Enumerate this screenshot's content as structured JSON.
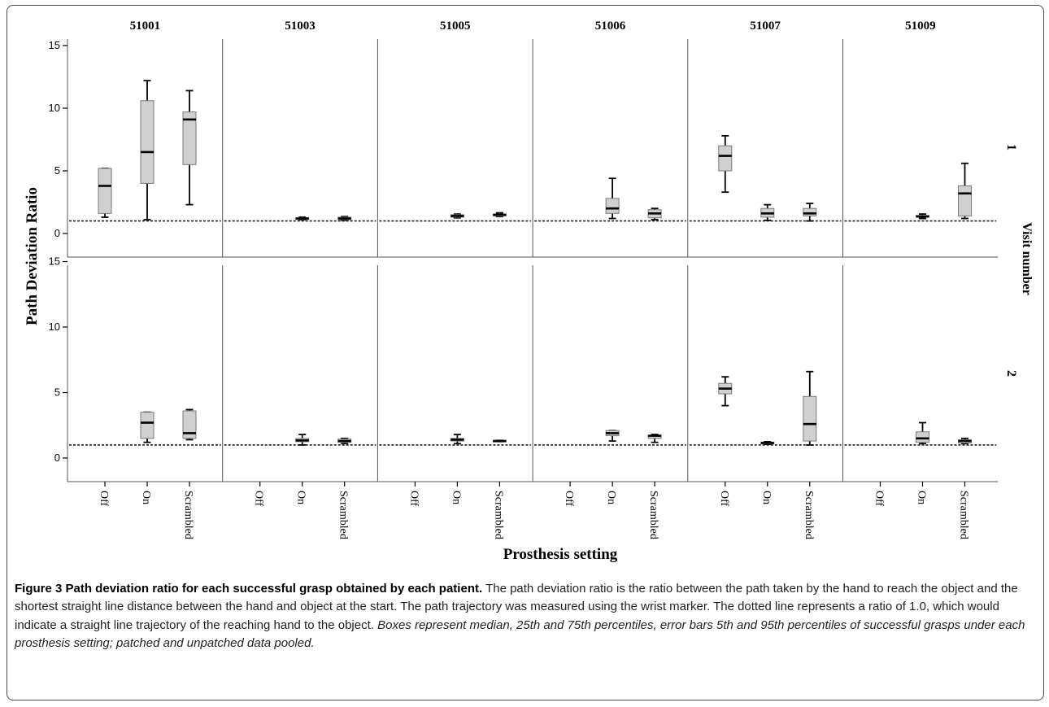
{
  "chart_data": {
    "type": "box",
    "facet_columns": [
      "51001",
      "51003",
      "51005",
      "51006",
      "51007",
      "51009"
    ],
    "facet_rows": [
      "1",
      "2"
    ],
    "categories": [
      "Off",
      "On",
      "Scrambled"
    ],
    "ylabel": "Path Deviation Ratio",
    "xlabel": "Prosthesis setting",
    "row_axis_label": "Visit number",
    "yticks": [
      0,
      5,
      10,
      15
    ],
    "ylim": [
      -0.8,
      16.2
    ],
    "reference_line": 1.0,
    "box_fields": [
      "min",
      "q1",
      "median",
      "q3",
      "max"
    ],
    "panels": [
      {
        "column": "51001",
        "row": "1",
        "boxes": {
          "Off": [
            1.3,
            1.6,
            3.8,
            5.2,
            5.2
          ],
          "On": [
            1.1,
            4.0,
            6.5,
            10.6,
            12.2
          ],
          "Scrambled": [
            2.3,
            5.5,
            9.1,
            9.7,
            11.4
          ]
        }
      },
      {
        "column": "51003",
        "row": "1",
        "boxes": {
          "On": [
            1.1,
            1.15,
            1.2,
            1.25,
            1.3
          ],
          "Scrambled": [
            1.05,
            1.1,
            1.2,
            1.3,
            1.35
          ]
        }
      },
      {
        "column": "51005",
        "row": "1",
        "boxes": {
          "On": [
            1.25,
            1.3,
            1.4,
            1.5,
            1.55
          ],
          "Scrambled": [
            1.35,
            1.4,
            1.5,
            1.55,
            1.65
          ]
        }
      },
      {
        "column": "51006",
        "row": "1",
        "boxes": {
          "On": [
            1.2,
            1.6,
            2.0,
            2.8,
            4.4
          ],
          "Scrambled": [
            1.1,
            1.25,
            1.6,
            1.9,
            2.0
          ]
        }
      },
      {
        "column": "51007",
        "row": "1",
        "boxes": {
          "Off": [
            3.3,
            5.0,
            6.2,
            7.0,
            7.8
          ],
          "On": [
            1.05,
            1.3,
            1.6,
            2.0,
            2.3
          ],
          "Scrambled": [
            1.0,
            1.4,
            1.6,
            2.0,
            2.4
          ]
        }
      },
      {
        "column": "51009",
        "row": "1",
        "boxes": {
          "On": [
            1.2,
            1.3,
            1.35,
            1.45,
            1.55
          ],
          "Scrambled": [
            1.2,
            1.4,
            3.2,
            3.8,
            5.6
          ]
        }
      },
      {
        "column": "51001",
        "row": "2",
        "boxes": {
          "On": [
            1.2,
            1.5,
            2.7,
            3.5,
            3.5
          ],
          "Scrambled": [
            1.4,
            1.5,
            1.9,
            3.6,
            3.7
          ]
        }
      },
      {
        "column": "51003",
        "row": "2",
        "boxes": {
          "On": [
            1.0,
            1.25,
            1.35,
            1.5,
            1.8
          ],
          "Scrambled": [
            1.1,
            1.2,
            1.3,
            1.45,
            1.5
          ]
        }
      },
      {
        "column": "51005",
        "row": "2",
        "boxes": {
          "On": [
            1.1,
            1.3,
            1.4,
            1.5,
            1.8
          ],
          "Scrambled": [
            1.3,
            1.3,
            1.3,
            1.35,
            1.35
          ]
        }
      },
      {
        "column": "51006",
        "row": "2",
        "boxes": {
          "On": [
            1.3,
            1.7,
            1.9,
            2.1,
            2.1
          ],
          "Scrambled": [
            1.2,
            1.5,
            1.7,
            1.75,
            1.8
          ]
        }
      },
      {
        "column": "51007",
        "row": "2",
        "boxes": {
          "Off": [
            4.0,
            4.9,
            5.3,
            5.7,
            6.2
          ],
          "On": [
            1.05,
            1.1,
            1.15,
            1.2,
            1.25
          ],
          "Scrambled": [
            1.0,
            1.3,
            2.6,
            4.7,
            6.6
          ]
        }
      },
      {
        "column": "51009",
        "row": "2",
        "boxes": {
          "On": [
            1.1,
            1.2,
            1.5,
            2.0,
            2.7
          ],
          "Scrambled": [
            1.1,
            1.15,
            1.3,
            1.4,
            1.5
          ]
        }
      }
    ]
  },
  "caption": {
    "title": "Figure 3 Path deviation ratio for each successful grasp obtained by each patient.",
    "body": "The path deviation ratio is the ratio between the path taken by the hand to reach the object and the shortest straight line distance between the hand and object at the start. The path trajectory was measured using the wrist marker. The dotted line represents a ratio of 1.0, which would indicate a straight line trajectory of the reaching hand to the object.",
    "italic": "Boxes represent median, 25th and 75th percentiles, error bars 5th and 95th percentiles of successful grasps under each prosthesis setting; patched and unpatched data pooled."
  },
  "colors": {
    "box_fill": "#d0d0d0",
    "box_stroke": "#7a7a7a",
    "median": "#000000",
    "whisker": "#000000",
    "reference_line": "#222222",
    "frame": "#4a4a4a"
  }
}
